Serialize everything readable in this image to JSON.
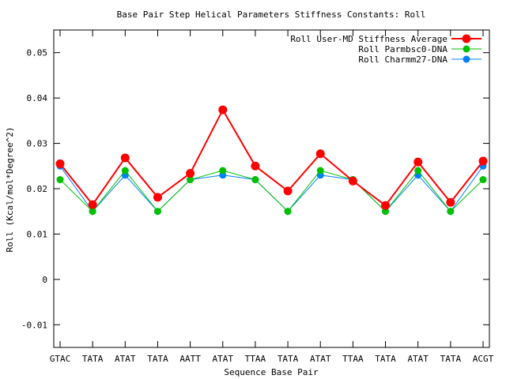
{
  "chart_data": {
    "type": "line",
    "title": "Base Pair Step Helical Parameters Stiffness Constants: Roll",
    "xlabel": "Sequence Base Pair",
    "ylabel": "Roll (Kcal/mol*Degree^2)",
    "categories": [
      "GTAC",
      "TATA",
      "ATAT",
      "TATA",
      "AATT",
      "ATAT",
      "TTAA",
      "TATA",
      "ATAT",
      "TTAA",
      "TATA",
      "ATAT",
      "TATA",
      "ACGT"
    ],
    "ylim": [
      -0.015,
      0.055
    ],
    "yticks": [
      -0.01,
      0,
      0.01,
      0.02,
      0.03,
      0.04,
      0.05
    ],
    "ytick_labels": [
      "-0.01",
      "0",
      "0.01",
      "0.02",
      "0.03",
      "0.04",
      "0.05"
    ],
    "grid": false,
    "legend_position": "top-right",
    "series": [
      {
        "name": "Roll User-MD Stiffness Average",
        "color": "#ff0000",
        "values": [
          0.0255,
          0.0165,
          0.0268,
          0.0181,
          0.0234,
          0.0374,
          0.025,
          0.0195,
          0.0277,
          0.0217,
          0.0163,
          0.0259,
          0.017,
          0.0261
        ]
      },
      {
        "name": "Roll Parmbsc0-DNA",
        "color": "#00c000",
        "values": [
          0.022,
          0.015,
          0.024,
          0.015,
          0.022,
          0.024,
          0.022,
          0.015,
          0.024,
          0.022,
          0.015,
          0.024,
          0.015,
          0.022
        ]
      },
      {
        "name": "Roll Charmm27-DNA",
        "color": "#0080ff",
        "values": [
          0.025,
          0.015,
          0.023,
          0.015,
          0.022,
          0.023,
          0.022,
          0.015,
          0.023,
          0.022,
          0.015,
          0.023,
          0.015,
          0.025
        ]
      }
    ]
  }
}
